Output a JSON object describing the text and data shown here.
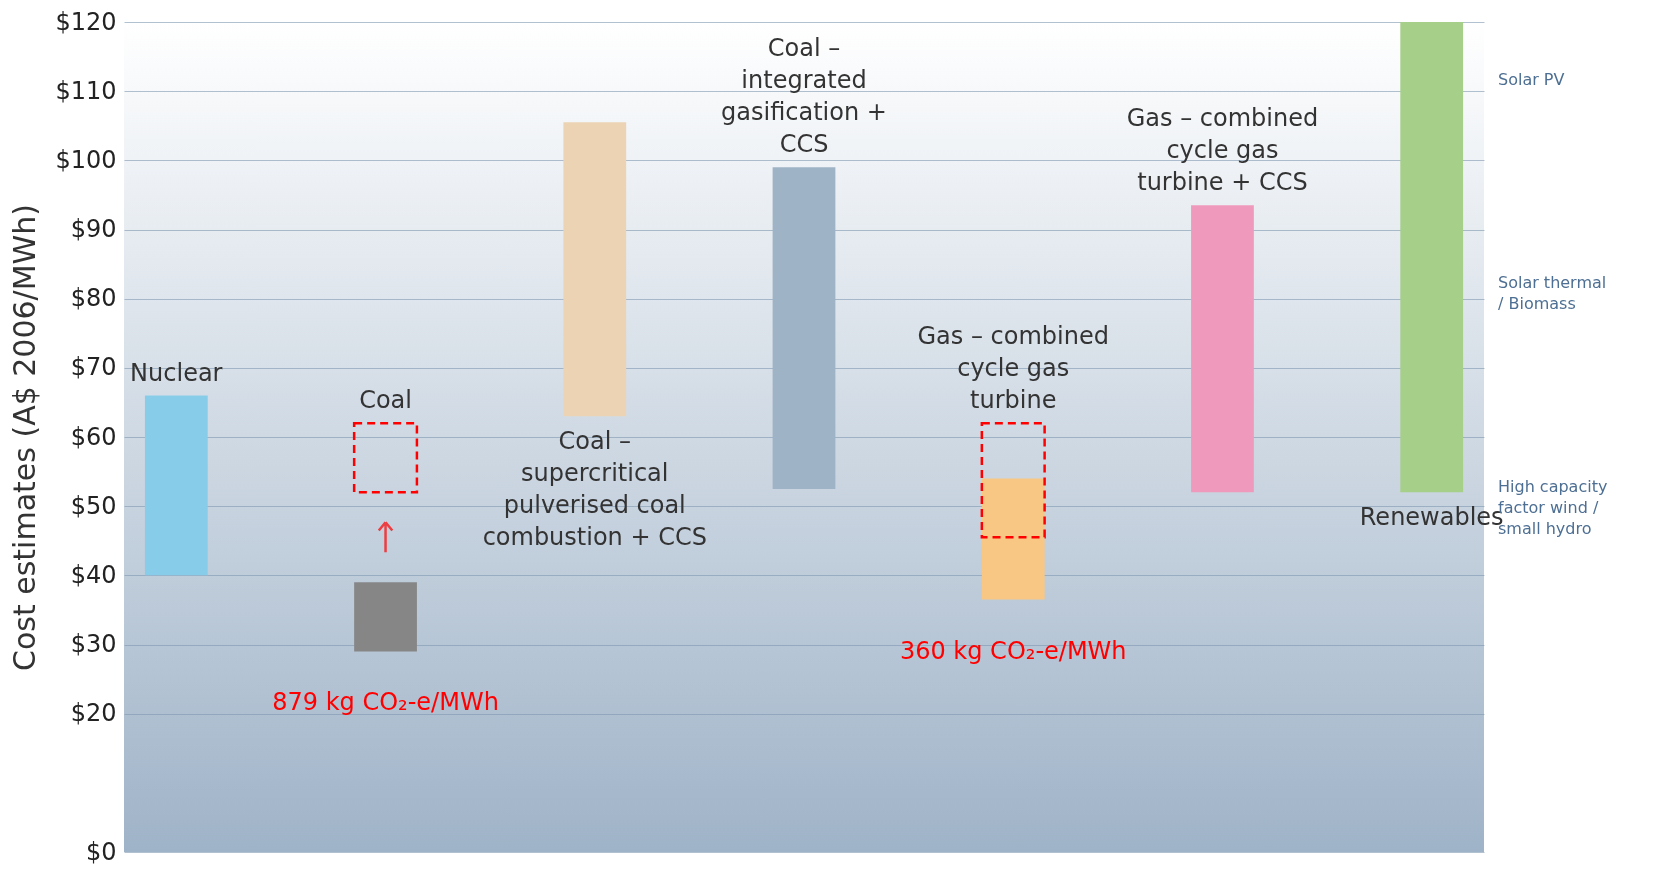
{
  "chart_data": {
    "type": "bar",
    "ylabel": "Cost estimates (A$ 2006/MWh)",
    "categories": [
      "Nuclear",
      "Coal",
      "Coal – supercritical pulverised coal combustion + CCS",
      "Coal – integrated gasification + CCS",
      "Gas – combined cycle gas turbine",
      "Gas – combined cycle gas turbine + CCS",
      "Renewables"
    ],
    "series": [
      {
        "colors": [
          "#87cdea",
          "#868686",
          "#ecd3b4",
          "#9fb3c6",
          "#f9c784",
          "#ef9abd",
          "#a6cf8a"
        ],
        "base": [
          40,
          29,
          63,
          52.5,
          36.5,
          52,
          52
        ],
        "values": [
          26,
          10,
          42.5,
          46.5,
          17.5,
          41.5,
          68
        ]
      },
      {
        "color": "#ff0000",
        "line_style": "dashed",
        "base": [
          null,
          52,
          null,
          null,
          45.5,
          null,
          null
        ],
        "values": [
          null,
          10,
          null,
          null,
          16.5,
          null,
          null
        ]
      }
    ],
    "ylim": [
      0,
      120
    ],
    "yticks": [
      {
        "value": 0,
        "label": "$0"
      },
      {
        "value": 20,
        "label": "$20"
      },
      {
        "value": 30,
        "label": "$30"
      },
      {
        "value": 40,
        "label": "$40"
      },
      {
        "value": 50,
        "label": "$50"
      },
      {
        "value": 60,
        "label": "$60"
      },
      {
        "value": 70,
        "label": "$70"
      },
      {
        "value": 80,
        "label": "$80"
      },
      {
        "value": 90,
        "label": "$90"
      },
      {
        "value": 100,
        "label": "$100"
      },
      {
        "value": 110,
        "label": "$110"
      },
      {
        "value": 120,
        "label": "$120"
      }
    ],
    "grid": "y",
    "tick_labels": "y",
    "annotations": [
      "Solar PV",
      "Solar thermal / Biomass",
      "High capacity factor wind / small hydro",
      {
        "text": "879 kg CO₂-e/MWh",
        "x": "Coal",
        "y": 29
      },
      {
        "text": "360 kg CO₂-e/MWh",
        "x": "Gas – combined cycle gas turbine",
        "y": 36.5
      }
    ]
  }
}
